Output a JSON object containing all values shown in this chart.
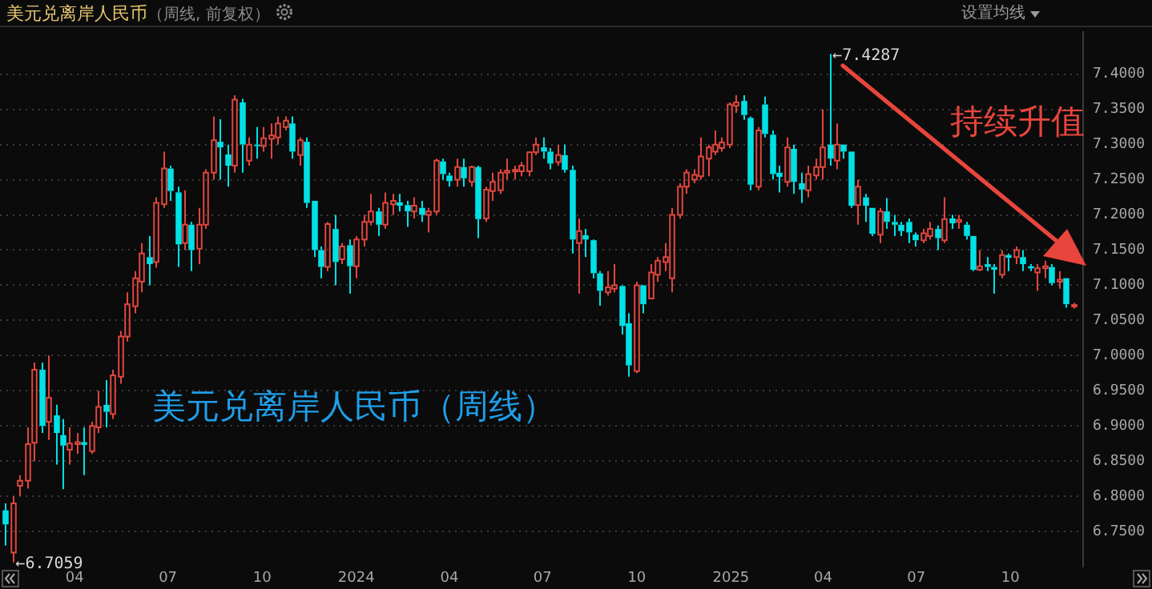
{
  "chart_data": {
    "type": "candlestick",
    "title": "美元兑离岸人民币",
    "subtitle": "（周线, 前复权）",
    "x": [
      "2023-01-23",
      "2023-01-30",
      "2023-02-06",
      "2023-02-13",
      "2023-02-20",
      "2023-02-27",
      "2023-03-06",
      "2023-03-13",
      "2023-03-20",
      "2023-03-27",
      "2023-04-03",
      "2023-04-10",
      "2023-04-17",
      "2023-04-24",
      "2023-05-01",
      "2023-05-08",
      "2023-05-15",
      "2023-05-22",
      "2023-05-29",
      "2023-06-05",
      "2023-06-12",
      "2023-06-19",
      "2023-06-26",
      "2023-07-03",
      "2023-07-10",
      "2023-07-17",
      "2023-07-24",
      "2023-07-31",
      "2023-08-07",
      "2023-08-14",
      "2023-08-21",
      "2023-08-28",
      "2023-09-04",
      "2023-09-11",
      "2023-09-18",
      "2023-09-25",
      "2023-10-02",
      "2023-10-09",
      "2023-10-16",
      "2023-10-23",
      "2023-10-30",
      "2023-11-06",
      "2023-11-13",
      "2023-11-20",
      "2023-11-27",
      "2023-12-04",
      "2023-12-11",
      "2023-12-18",
      "2023-12-25",
      "2024-01-01",
      "2024-01-08",
      "2024-01-15",
      "2024-01-22",
      "2024-01-29",
      "2024-02-05",
      "2024-02-12",
      "2024-02-19",
      "2024-02-26",
      "2024-03-04",
      "2024-03-11",
      "2024-03-18",
      "2024-03-25",
      "2024-04-01",
      "2024-04-08",
      "2024-04-15",
      "2024-04-22",
      "2024-04-29",
      "2024-05-06",
      "2024-05-13",
      "2024-05-20",
      "2024-05-27",
      "2024-06-03",
      "2024-06-10",
      "2024-06-17",
      "2024-06-24",
      "2024-07-01",
      "2024-07-08",
      "2024-07-15",
      "2024-07-22",
      "2024-07-29",
      "2024-08-05",
      "2024-08-12",
      "2024-08-19",
      "2024-08-26",
      "2024-09-02",
      "2024-09-09",
      "2024-09-16",
      "2024-09-23",
      "2024-09-30",
      "2024-10-07",
      "2024-10-14",
      "2024-10-21",
      "2024-10-28",
      "2024-11-04",
      "2024-11-11",
      "2024-11-18",
      "2024-11-25",
      "2024-12-02",
      "2024-12-09",
      "2024-12-16",
      "2024-12-23",
      "2024-12-30",
      "2025-01-06",
      "2025-01-13",
      "2025-01-20",
      "2025-01-27",
      "2025-02-03",
      "2025-02-10",
      "2025-02-17",
      "2025-02-24",
      "2025-03-03",
      "2025-03-10",
      "2025-03-17",
      "2025-03-24",
      "2025-03-31",
      "2025-04-07",
      "2025-04-14",
      "2025-04-21",
      "2025-04-28",
      "2025-05-05",
      "2025-05-12",
      "2025-05-19",
      "2025-05-26",
      "2025-06-02",
      "2025-06-09",
      "2025-06-16",
      "2025-06-23",
      "2025-06-30",
      "2025-07-07",
      "2025-07-14",
      "2025-07-21",
      "2025-07-28",
      "2025-08-04",
      "2025-08-11",
      "2025-08-18",
      "2025-08-25",
      "2025-09-01",
      "2025-09-08",
      "2025-09-15",
      "2025-09-22",
      "2025-09-29",
      "2025-10-06",
      "2025-10-13",
      "2025-10-20",
      "2025-10-27",
      "2025-11-03",
      "2025-11-10",
      "2025-11-17",
      "2025-11-24",
      "2025-12-01"
    ],
    "ohlc": [
      [
        6.78,
        6.79,
        6.73,
        6.76
      ],
      [
        6.72,
        6.8,
        6.7059,
        6.79
      ],
      [
        6.815,
        6.83,
        6.8,
        6.822
      ],
      [
        6.822,
        6.898,
        6.811,
        6.874
      ],
      [
        6.876,
        6.99,
        6.85,
        6.98
      ],
      [
        6.98,
        6.99,
        6.89,
        6.9
      ],
      [
        6.906,
        7.0,
        6.88,
        6.94
      ],
      [
        6.915,
        6.93,
        6.845,
        6.89
      ],
      [
        6.887,
        6.91,
        6.81,
        6.872
      ],
      [
        6.866,
        6.898,
        6.845,
        6.875
      ],
      [
        6.874,
        6.89,
        6.86,
        6.877
      ],
      [
        6.877,
        6.898,
        6.83,
        6.873
      ],
      [
        6.864,
        6.906,
        6.86,
        6.9
      ],
      [
        6.898,
        6.95,
        6.89,
        6.927
      ],
      [
        6.93,
        6.965,
        6.898,
        6.92
      ],
      [
        6.917,
        6.98,
        6.91,
        6.972
      ],
      [
        6.97,
        7.035,
        6.96,
        7.027
      ],
      [
        7.027,
        7.09,
        7.02,
        7.073
      ],
      [
        7.07,
        7.12,
        7.06,
        7.11
      ],
      [
        7.105,
        7.16,
        7.09,
        7.145
      ],
      [
        7.14,
        7.17,
        7.1,
        7.13
      ],
      [
        7.133,
        7.225,
        7.125,
        7.217
      ],
      [
        7.215,
        7.29,
        7.21,
        7.266
      ],
      [
        7.266,
        7.27,
        7.22,
        7.234
      ],
      [
        7.232,
        7.24,
        7.126,
        7.158
      ],
      [
        7.16,
        7.235,
        7.15,
        7.186
      ],
      [
        7.186,
        7.19,
        7.12,
        7.15
      ],
      [
        7.152,
        7.21,
        7.13,
        7.186
      ],
      [
        7.186,
        7.265,
        7.18,
        7.26
      ],
      [
        7.26,
        7.34,
        7.25,
        7.306
      ],
      [
        7.304,
        7.336,
        7.25,
        7.296
      ],
      [
        7.286,
        7.3,
        7.24,
        7.27
      ],
      [
        7.27,
        7.37,
        7.26,
        7.364
      ],
      [
        7.36,
        7.365,
        7.26,
        7.3
      ],
      [
        7.277,
        7.31,
        7.27,
        7.3
      ],
      [
        7.3,
        7.325,
        7.28,
        7.298
      ],
      [
        7.298,
        7.325,
        7.29,
        7.309
      ],
      [
        7.308,
        7.33,
        7.28,
        7.313
      ],
      [
        7.31,
        7.34,
        7.3,
        7.33
      ],
      [
        7.325,
        7.34,
        7.32,
        7.334
      ],
      [
        7.33,
        7.34,
        7.28,
        7.29
      ],
      [
        7.285,
        7.31,
        7.27,
        7.306
      ],
      [
        7.304,
        7.31,
        7.21,
        7.217
      ],
      [
        7.22,
        7.22,
        7.14,
        7.15
      ],
      [
        7.15,
        7.155,
        7.11,
        7.126
      ],
      [
        7.126,
        7.19,
        7.12,
        7.187
      ],
      [
        7.18,
        7.2,
        7.1,
        7.133
      ],
      [
        7.137,
        7.16,
        7.13,
        7.155
      ],
      [
        7.157,
        7.165,
        7.088,
        7.127
      ],
      [
        7.127,
        7.17,
        7.11,
        7.165
      ],
      [
        7.165,
        7.2,
        7.155,
        7.19
      ],
      [
        7.19,
        7.23,
        7.185,
        7.205
      ],
      [
        7.205,
        7.21,
        7.17,
        7.186
      ],
      [
        7.186,
        7.232,
        7.18,
        7.217
      ],
      [
        7.215,
        7.23,
        7.2,
        7.22
      ],
      [
        7.218,
        7.23,
        7.205,
        7.213
      ],
      [
        7.214,
        7.22,
        7.183,
        7.205
      ],
      [
        7.205,
        7.225,
        7.195,
        7.213
      ],
      [
        7.21,
        7.22,
        7.19,
        7.2
      ],
      [
        7.2,
        7.21,
        7.175,
        7.205
      ],
      [
        7.205,
        7.28,
        7.2,
        7.277
      ],
      [
        7.276,
        7.28,
        7.25,
        7.258
      ],
      [
        7.256,
        7.26,
        7.24,
        7.248
      ],
      [
        7.25,
        7.28,
        7.24,
        7.268
      ],
      [
        7.268,
        7.28,
        7.24,
        7.252
      ],
      [
        7.247,
        7.27,
        7.24,
        7.268
      ],
      [
        7.268,
        7.27,
        7.167,
        7.194
      ],
      [
        7.195,
        7.24,
        7.19,
        7.236
      ],
      [
        7.234,
        7.26,
        7.22,
        7.247
      ],
      [
        7.235,
        7.265,
        7.23,
        7.26
      ],
      [
        7.26,
        7.28,
        7.25,
        7.263
      ],
      [
        7.262,
        7.27,
        7.25,
        7.264
      ],
      [
        7.262,
        7.275,
        7.255,
        7.27
      ],
      [
        7.262,
        7.29,
        7.255,
        7.289
      ],
      [
        7.289,
        7.31,
        7.285,
        7.3
      ],
      [
        7.296,
        7.31,
        7.28,
        7.29
      ],
      [
        7.29,
        7.295,
        7.265,
        7.273
      ],
      [
        7.275,
        7.3,
        7.27,
        7.285
      ],
      [
        7.285,
        7.3,
        7.26,
        7.264
      ],
      [
        7.264,
        7.27,
        7.145,
        7.165
      ],
      [
        7.16,
        7.195,
        7.088,
        7.177
      ],
      [
        7.171,
        7.18,
        7.14,
        7.165
      ],
      [
        7.164,
        7.165,
        7.11,
        7.117
      ],
      [
        7.117,
        7.12,
        7.071,
        7.092
      ],
      [
        7.09,
        7.12,
        7.085,
        7.097
      ],
      [
        7.095,
        7.13,
        7.09,
        7.1
      ],
      [
        7.099,
        7.1,
        7.03,
        7.042
      ],
      [
        7.046,
        7.06,
        6.97,
        6.986
      ],
      [
        6.978,
        7.105,
        6.975,
        7.1
      ],
      [
        7.1,
        7.1,
        7.06,
        7.073
      ],
      [
        7.081,
        7.13,
        7.08,
        7.118
      ],
      [
        7.115,
        7.14,
        7.105,
        7.135
      ],
      [
        7.133,
        7.16,
        7.12,
        7.14
      ],
      [
        7.11,
        7.21,
        7.09,
        7.2
      ],
      [
        7.2,
        7.245,
        7.195,
        7.24
      ],
      [
        7.24,
        7.265,
        7.23,
        7.26
      ],
      [
        7.25,
        7.265,
        7.245,
        7.257
      ],
      [
        7.255,
        7.31,
        7.25,
        7.283
      ],
      [
        7.28,
        7.3,
        7.255,
        7.296
      ],
      [
        7.29,
        7.32,
        7.285,
        7.3
      ],
      [
        7.295,
        7.31,
        7.29,
        7.303
      ],
      [
        7.3,
        7.36,
        7.295,
        7.357
      ],
      [
        7.355,
        7.37,
        7.345,
        7.36
      ],
      [
        7.362,
        7.37,
        7.335,
        7.342
      ],
      [
        7.338,
        7.34,
        7.235,
        7.243
      ],
      [
        7.24,
        7.325,
        7.235,
        7.32
      ],
      [
        7.357,
        7.368,
        7.31,
        7.315
      ],
      [
        7.314,
        7.32,
        7.25,
        7.258
      ],
      [
        7.26,
        7.27,
        7.232,
        7.254
      ],
      [
        7.247,
        7.31,
        7.24,
        7.296
      ],
      [
        7.294,
        7.3,
        7.23,
        7.247
      ],
      [
        7.245,
        7.26,
        7.217,
        7.236
      ],
      [
        7.235,
        7.27,
        7.225,
        7.258
      ],
      [
        7.256,
        7.28,
        7.25,
        7.268
      ],
      [
        7.268,
        7.35,
        7.25,
        7.296
      ],
      [
        7.3,
        7.4287,
        7.27,
        7.28
      ],
      [
        7.277,
        7.33,
        7.265,
        7.3
      ],
      [
        7.3,
        7.3,
        7.28,
        7.29
      ],
      [
        7.29,
        7.29,
        7.21,
        7.213
      ],
      [
        7.214,
        7.25,
        7.186,
        7.24
      ],
      [
        7.225,
        7.23,
        7.19,
        7.213
      ],
      [
        7.21,
        7.21,
        7.17,
        7.173
      ],
      [
        7.172,
        7.21,
        7.16,
        7.205
      ],
      [
        7.205,
        7.224,
        7.18,
        7.19
      ],
      [
        7.19,
        7.2,
        7.17,
        7.186
      ],
      [
        7.186,
        7.19,
        7.17,
        7.177
      ],
      [
        7.19,
        7.195,
        7.16,
        7.175
      ],
      [
        7.172,
        7.175,
        7.155,
        7.164
      ],
      [
        7.164,
        7.18,
        7.16,
        7.174
      ],
      [
        7.17,
        7.19,
        7.165,
        7.18
      ],
      [
        7.18,
        7.185,
        7.15,
        7.167
      ],
      [
        7.164,
        7.225,
        7.16,
        7.194
      ],
      [
        7.195,
        7.2,
        7.18,
        7.188
      ],
      [
        7.19,
        7.2,
        7.18,
        7.193
      ],
      [
        7.186,
        7.19,
        7.165,
        7.17
      ],
      [
        7.17,
        7.17,
        7.12,
        7.122
      ],
      [
        7.122,
        7.15,
        7.12,
        7.127
      ],
      [
        7.13,
        7.14,
        7.12,
        7.126
      ],
      [
        7.126,
        7.13,
        7.088,
        7.122
      ],
      [
        7.115,
        7.15,
        7.11,
        7.143
      ],
      [
        7.143,
        7.145,
        7.12,
        7.139
      ],
      [
        7.14,
        7.155,
        7.13,
        7.15
      ],
      [
        7.14,
        7.15,
        7.12,
        7.13
      ],
      [
        7.127,
        7.13,
        7.12,
        7.124
      ],
      [
        7.118,
        7.13,
        7.092,
        7.124
      ],
      [
        7.124,
        7.135,
        7.11,
        7.127
      ],
      [
        7.126,
        7.13,
        7.1,
        7.103
      ],
      [
        7.105,
        7.12,
        7.095,
        7.108
      ],
      [
        7.11,
        7.11,
        7.068,
        7.073
      ],
      [
        7.07,
        7.075,
        7.067,
        7.072
      ]
    ],
    "colors": [
      "#00e1e6",
      "#e0463e",
      "#e0463e",
      "#e0463e",
      "#e0463e",
      "#00e1e6",
      "#e0463e",
      "#00e1e6",
      "#00e1e6",
      "#e0463e",
      "#e0463e",
      "#00e1e6",
      "#e0463e",
      "#e0463e",
      "#00e1e6",
      "#e0463e",
      "#e0463e",
      "#e0463e",
      "#e0463e",
      "#e0463e",
      "#00e1e6",
      "#e0463e",
      "#e0463e",
      "#00e1e6",
      "#00e1e6",
      "#e0463e",
      "#00e1e6",
      "#e0463e",
      "#e0463e",
      "#e0463e",
      "#00e1e6",
      "#00e1e6",
      "#e0463e",
      "#00e1e6",
      "#e0463e",
      "#00e1e6",
      "#e0463e",
      "#e0463e",
      "#e0463e",
      "#e0463e",
      "#00e1e6",
      "#e0463e",
      "#00e1e6",
      "#00e1e6",
      "#00e1e6",
      "#e0463e",
      "#00e1e6",
      "#e0463e",
      "#00e1e6",
      "#e0463e",
      "#e0463e",
      "#e0463e",
      "#00e1e6",
      "#e0463e",
      "#e0463e",
      "#00e1e6",
      "#00e1e6",
      "#e0463e",
      "#00e1e6",
      "#e0463e",
      "#e0463e",
      "#00e1e6",
      "#00e1e6",
      "#e0463e",
      "#00e1e6",
      "#e0463e",
      "#00e1e6",
      "#e0463e",
      "#e0463e",
      "#e0463e",
      "#e0463e",
      "#e0463e",
      "#e0463e",
      "#e0463e",
      "#e0463e",
      "#00e1e6",
      "#00e1e6",
      "#e0463e",
      "#00e1e6",
      "#00e1e6",
      "#e0463e",
      "#00e1e6",
      "#00e1e6",
      "#00e1e6",
      "#e0463e",
      "#e0463e",
      "#00e1e6",
      "#00e1e6",
      "#e0463e",
      "#00e1e6",
      "#e0463e",
      "#e0463e",
      "#e0463e",
      "#e0463e",
      "#e0463e",
      "#e0463e",
      "#e0463e",
      "#e0463e",
      "#e0463e",
      "#e0463e",
      "#e0463e",
      "#e0463e",
      "#e0463e",
      "#00e1e6",
      "#00e1e6",
      "#e0463e",
      "#00e1e6",
      "#00e1e6",
      "#00e1e6",
      "#e0463e",
      "#00e1e6",
      "#00e1e6",
      "#e0463e",
      "#e0463e",
      "#e0463e",
      "#00e1e6",
      "#e0463e",
      "#00e1e6",
      "#00e1e6",
      "#e0463e",
      "#00e1e6",
      "#00e1e6",
      "#e0463e",
      "#00e1e6",
      "#00e1e6",
      "#00e1e6",
      "#00e1e6",
      "#00e1e6",
      "#e0463e",
      "#e0463e",
      "#00e1e6",
      "#e0463e",
      "#00e1e6",
      "#e0463e",
      "#00e1e6",
      "#00e1e6",
      "#e0463e",
      "#00e1e6",
      "#00e1e6",
      "#e0463e",
      "#00e1e6",
      "#e0463e",
      "#00e1e6",
      "#00e1e6",
      "#e0463e",
      "#e0463e",
      "#00e1e6",
      "#e0463e",
      "#00e1e6",
      "#e0463e"
    ],
    "xlim": [
      "2023-01-18",
      "2025-12-11"
    ],
    "xticks": [
      {
        "value": "2023-04-01",
        "label": "04"
      },
      {
        "value": "2023-07-01",
        "label": "07"
      },
      {
        "value": "2023-10-01",
        "label": "10"
      },
      {
        "value": "2024-01-01",
        "label": "2024"
      },
      {
        "value": "2024-04-01",
        "label": "04"
      },
      {
        "value": "2024-07-01",
        "label": "07"
      },
      {
        "value": "2024-10-01",
        "label": "10"
      },
      {
        "value": "2025-01-01",
        "label": "2025"
      },
      {
        "value": "2025-04-01",
        "label": "04"
      },
      {
        "value": "2025-07-01",
        "label": "07"
      },
      {
        "value": "2025-10-01",
        "label": "10"
      }
    ],
    "ylim": [
      6.7,
      7.46
    ],
    "yticks": [
      {
        "value": 6.75,
        "label": "6.7500"
      },
      {
        "value": 6.8,
        "label": "6.8000"
      },
      {
        "value": 6.85,
        "label": "6.8500"
      },
      {
        "value": 6.9,
        "label": "6.9000"
      },
      {
        "value": 6.95,
        "label": "6.9500"
      },
      {
        "value": 7.0,
        "label": "7.0000"
      },
      {
        "value": 7.05,
        "label": "7.0500"
      },
      {
        "value": 7.1,
        "label": "7.1000"
      },
      {
        "value": 7.15,
        "label": "7.1500"
      },
      {
        "value": 7.2,
        "label": "7.2000"
      },
      {
        "value": 7.25,
        "label": "7.2500"
      },
      {
        "value": 7.3,
        "label": "7.3000"
      },
      {
        "value": 7.35,
        "label": "7.3500"
      },
      {
        "value": 7.4,
        "label": "7.4000"
      }
    ],
    "grid": "y",
    "annotations": [
      {
        "text": "←6.7059",
        "x": "2023-01-30",
        "y": 6.7059
      },
      {
        "text": "←7.4287",
        "x": "2025-04-07",
        "y": 7.4287
      },
      "美元兑离岸人民币（周线）",
      "持续升值",
      "设置均线"
    ]
  }
}
